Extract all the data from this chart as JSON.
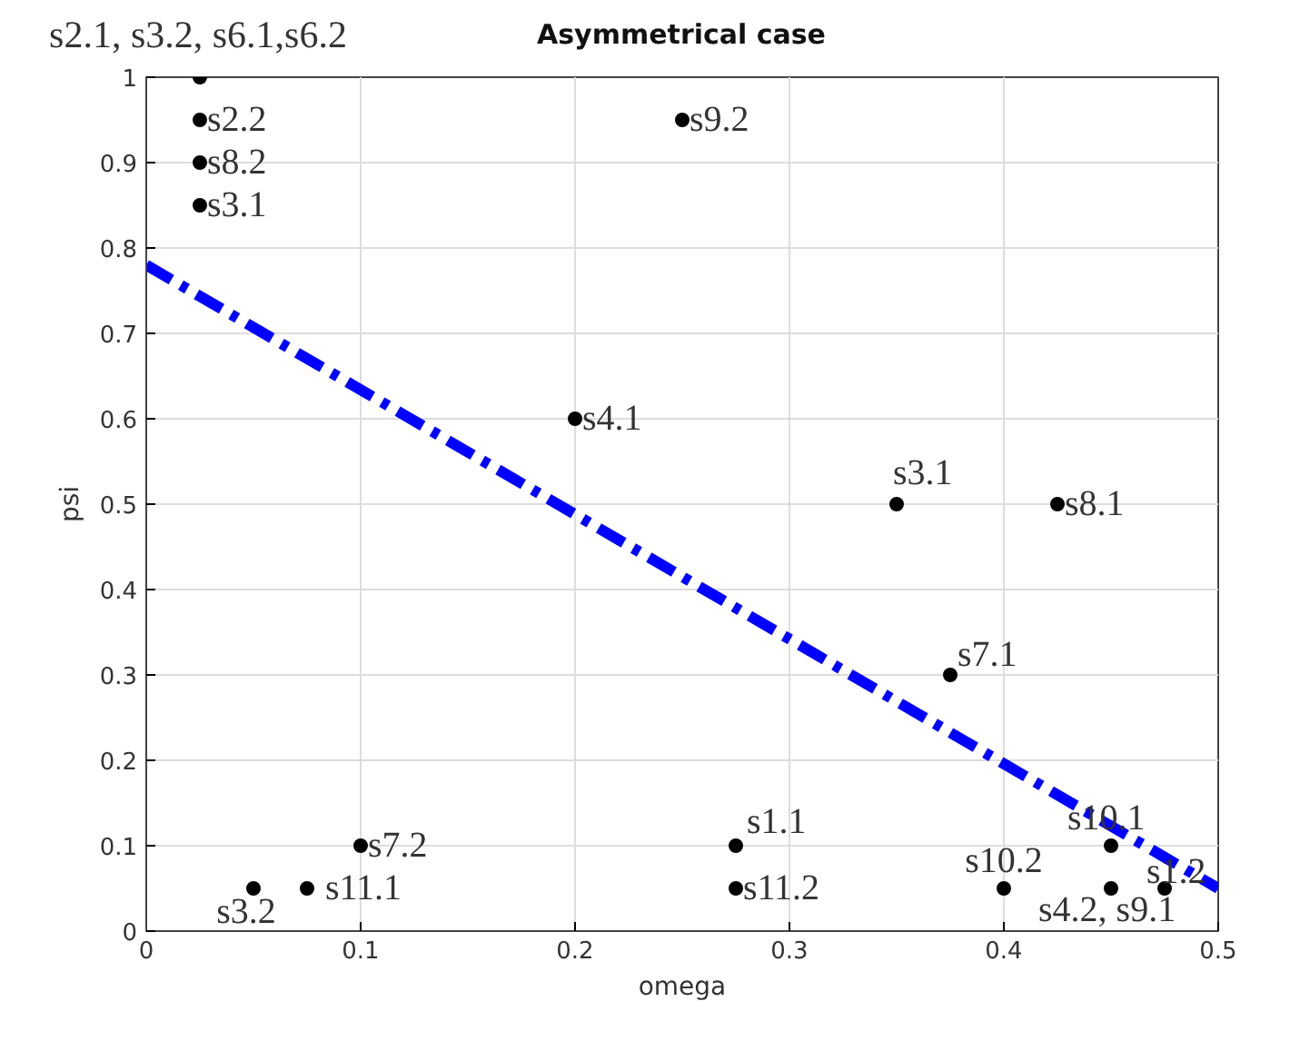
{
  "chart_data": {
    "type": "scatter",
    "title": "Asymmetrical case",
    "xlabel": "omega",
    "ylabel": "psi",
    "xlim": [
      0,
      0.5
    ],
    "ylim": [
      0,
      1
    ],
    "xticks": [
      0,
      0.1,
      0.2,
      0.3,
      0.4,
      0.5
    ],
    "yticks": [
      0,
      0.1,
      0.2,
      0.3,
      0.4,
      0.5,
      0.6,
      0.7,
      0.8,
      0.9,
      1
    ],
    "grid": true,
    "series": [
      {
        "type": "scatter",
        "marker": "circle",
        "color": "#000000",
        "x": [
          0.025,
          0.025,
          0.025,
          0.025,
          0.25,
          0.2,
          0.35,
          0.425,
          0.375,
          0.45,
          0.475,
          0.4,
          0.45,
          0.275,
          0.275,
          0.1,
          0.075,
          0.05
        ],
        "values": [
          1.0,
          0.95,
          0.9,
          0.85,
          0.95,
          0.6,
          0.5,
          0.5,
          0.3,
          0.1,
          0.05,
          0.05,
          0.05,
          0.1,
          0.05,
          0.1,
          0.05,
          0.05
        ]
      },
      {
        "type": "line",
        "color": "#0000ff",
        "line_style": "dashed",
        "x": [
          0,
          0.5
        ],
        "values": [
          0.78,
          0.05
        ]
      }
    ],
    "annotations": [
      {
        "text": "s2.1, s3.2, s6.1,s6.2",
        "x": 0.025,
        "y": 1.0
      },
      {
        "text": "s2.2",
        "x": 0.025,
        "y": 0.95
      },
      {
        "text": "s8.2",
        "x": 0.025,
        "y": 0.9
      },
      {
        "text": "s3.1",
        "x": 0.025,
        "y": 0.85
      },
      {
        "text": "s9.2",
        "x": 0.25,
        "y": 0.95
      },
      {
        "text": "s4.1",
        "x": 0.2,
        "y": 0.6
      },
      {
        "text": "s3.1",
        "x": 0.35,
        "y": 0.5
      },
      {
        "text": "s8.1",
        "x": 0.425,
        "y": 0.5
      },
      {
        "text": "s7.1",
        "x": 0.375,
        "y": 0.3
      },
      {
        "text": "s10.1",
        "x": 0.45,
        "y": 0.1
      },
      {
        "text": "s1.2",
        "x": 0.475,
        "y": 0.05
      },
      {
        "text": "s10.2",
        "x": 0.4,
        "y": 0.05
      },
      {
        "text": "s4.2, s9.1",
        "x": 0.45,
        "y": 0.05
      },
      {
        "text": "s1.1",
        "x": 0.275,
        "y": 0.1
      },
      {
        "text": "s11.2",
        "x": 0.275,
        "y": 0.05
      },
      {
        "text": "s7.2",
        "x": 0.1,
        "y": 0.1
      },
      {
        "text": "s11.1",
        "x": 0.075,
        "y": 0.05
      },
      {
        "text": "s3.2",
        "x": 0.05,
        "y": 0.05
      }
    ]
  }
}
